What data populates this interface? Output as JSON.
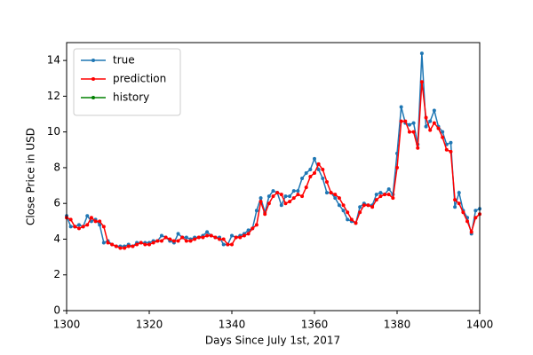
{
  "chart_data": {
    "type": "line",
    "xlabel": "Days Since July 1st, 2017",
    "ylabel": "Close Price in USD",
    "x": [
      1300,
      1301,
      1302,
      1303,
      1304,
      1305,
      1306,
      1307,
      1308,
      1309,
      1310,
      1311,
      1312,
      1313,
      1314,
      1315,
      1316,
      1317,
      1318,
      1319,
      1320,
      1321,
      1322,
      1323,
      1324,
      1325,
      1326,
      1327,
      1328,
      1329,
      1330,
      1331,
      1332,
      1333,
      1334,
      1335,
      1336,
      1337,
      1338,
      1339,
      1340,
      1341,
      1342,
      1343,
      1344,
      1345,
      1346,
      1347,
      1348,
      1349,
      1350,
      1351,
      1352,
      1353,
      1354,
      1355,
      1356,
      1357,
      1358,
      1359,
      1360,
      1361,
      1362,
      1363,
      1364,
      1365,
      1366,
      1367,
      1368,
      1369,
      1370,
      1371,
      1372,
      1373,
      1374,
      1375,
      1376,
      1377,
      1378,
      1379,
      1380,
      1381,
      1382,
      1383,
      1384,
      1385,
      1386,
      1387,
      1388,
      1389,
      1390,
      1391,
      1392,
      1393,
      1394,
      1395,
      1396,
      1397,
      1398,
      1399,
      1400
    ],
    "series": [
      {
        "name": "true",
        "color": "#1f77b4",
        "values": [
          5.3,
          4.7,
          4.7,
          4.8,
          4.7,
          5.3,
          5.0,
          5.1,
          4.8,
          3.8,
          3.9,
          3.7,
          3.6,
          3.6,
          3.6,
          3.7,
          3.6,
          3.8,
          3.8,
          3.8,
          3.8,
          3.9,
          3.9,
          4.2,
          4.1,
          3.9,
          3.8,
          4.3,
          4.1,
          4.1,
          4.0,
          4.1,
          4.1,
          4.2,
          4.4,
          4.2,
          4.1,
          4.1,
          3.7,
          3.7,
          4.2,
          4.1,
          4.2,
          4.3,
          4.5,
          4.6,
          5.6,
          6.3,
          5.5,
          6.4,
          6.7,
          6.6,
          5.9,
          6.4,
          6.4,
          6.7,
          6.7,
          7.4,
          7.7,
          7.9,
          8.5,
          7.9,
          7.4,
          6.6,
          6.6,
          6.3,
          5.9,
          5.6,
          5.1,
          5.0,
          4.9,
          5.8,
          6.0,
          5.9,
          5.9,
          6.5,
          6.6,
          6.5,
          6.8,
          6.5,
          8.8,
          11.4,
          10.5,
          10.4,
          10.5,
          9.3,
          14.4,
          10.3,
          10.6,
          11.2,
          10.3,
          10.0,
          9.3,
          9.4,
          5.8,
          6.6,
          5.6,
          5.2,
          4.3,
          5.6,
          5.7
        ]
      },
      {
        "name": "prediction",
        "color": "#ff0000",
        "values": [
          5.2,
          5.1,
          4.7,
          4.6,
          4.7,
          4.8,
          5.2,
          5.0,
          5.0,
          4.7,
          3.8,
          3.7,
          3.6,
          3.5,
          3.5,
          3.6,
          3.6,
          3.7,
          3.8,
          3.7,
          3.7,
          3.8,
          3.9,
          3.9,
          4.1,
          4.0,
          3.9,
          3.9,
          4.1,
          3.9,
          3.9,
          4.0,
          4.1,
          4.1,
          4.2,
          4.2,
          4.1,
          4.0,
          4.0,
          3.7,
          3.7,
          4.1,
          4.1,
          4.2,
          4.3,
          4.6,
          4.8,
          6.1,
          5.4,
          6.0,
          6.4,
          6.6,
          6.5,
          6.0,
          6.1,
          6.3,
          6.5,
          6.4,
          6.9,
          7.5,
          7.7,
          8.2,
          7.9,
          7.2,
          6.6,
          6.5,
          6.3,
          5.9,
          5.5,
          5.1,
          4.9,
          5.5,
          5.9,
          5.9,
          5.8,
          6.2,
          6.4,
          6.5,
          6.5,
          6.3,
          8.0,
          10.6,
          10.6,
          10.0,
          10.0,
          9.1,
          12.8,
          10.8,
          10.1,
          10.5,
          10.2,
          9.7,
          9.0,
          8.9,
          6.2,
          6.0,
          5.5,
          5.0,
          4.4,
          5.2,
          5.4
        ]
      },
      {
        "name": "history",
        "color": "#008000",
        "values": [
          null,
          null,
          null,
          null,
          null,
          null,
          null,
          null,
          null,
          null,
          null,
          null,
          null,
          null,
          null,
          null,
          null,
          null,
          null,
          null,
          null,
          null,
          null,
          null,
          null,
          null,
          null,
          null,
          null,
          null,
          null,
          null,
          null,
          null,
          null,
          null,
          null,
          null,
          null,
          null,
          null,
          null,
          null,
          null,
          null,
          null,
          null,
          null,
          null,
          null,
          null,
          null,
          null,
          null,
          null,
          null,
          null,
          null,
          null,
          null,
          null,
          null,
          null,
          null,
          null,
          null,
          null,
          null,
          null,
          null,
          null,
          null,
          null,
          null,
          null,
          null,
          null,
          null,
          null,
          null,
          null,
          null,
          null,
          null,
          null,
          null,
          null,
          null,
          null,
          null,
          null,
          null,
          null,
          null,
          null,
          null,
          null,
          null,
          null,
          null,
          null
        ]
      }
    ],
    "xlim": [
      1300,
      1400
    ],
    "xticks": [
      1300,
      1320,
      1340,
      1360,
      1380,
      1400
    ],
    "ylim": [
      0,
      15
    ],
    "yticks": [
      0,
      2,
      4,
      6,
      8,
      10,
      12,
      14
    ],
    "legend": "upper left"
  }
}
